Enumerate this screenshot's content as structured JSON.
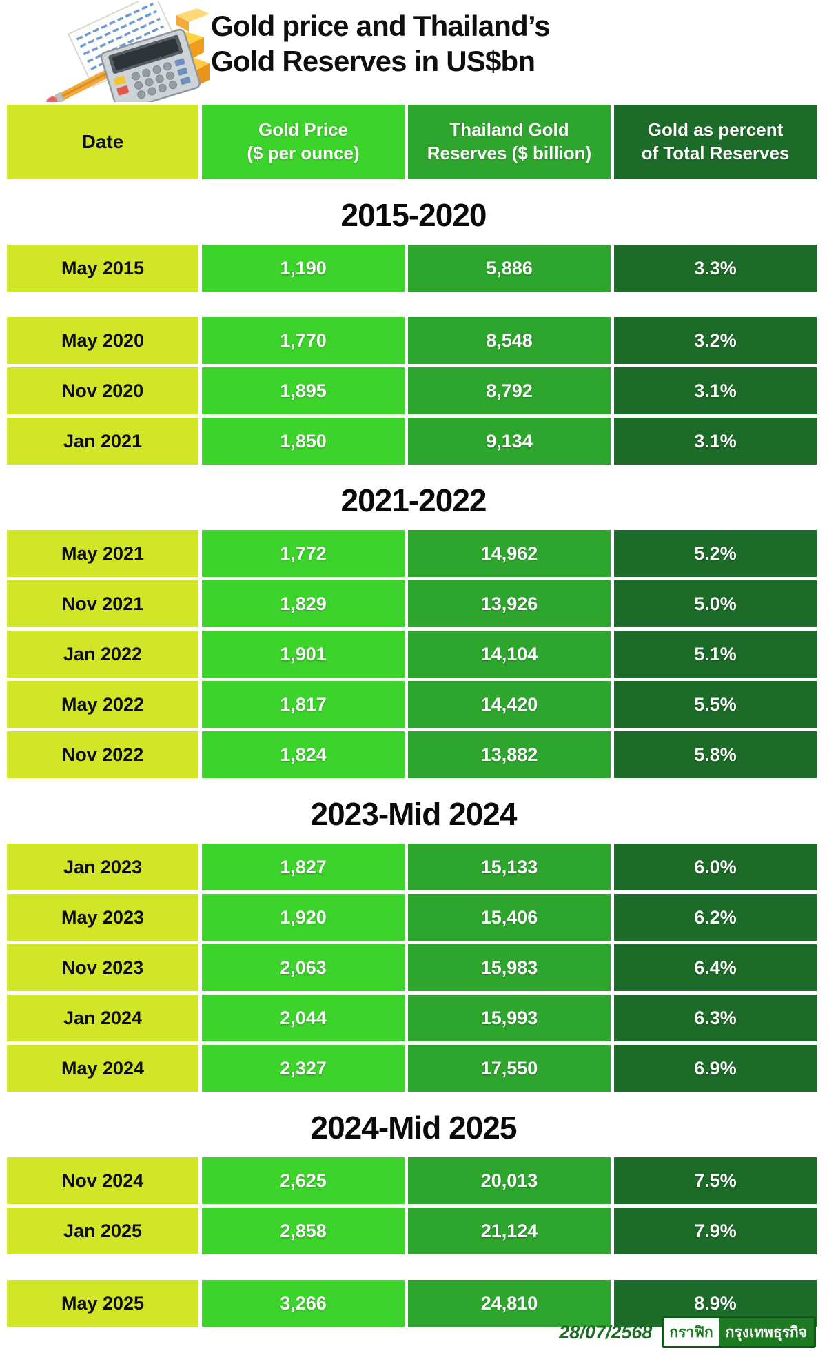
{
  "page": {
    "title_line1": "Gold price and Thailand’s",
    "title_line2": "Gold Reserves in US$bn"
  },
  "table": {
    "columns": [
      {
        "line1": "Date",
        "line2": ""
      },
      {
        "line1": "Gold Price",
        "line2": "($ per ounce)"
      },
      {
        "line1": "Thailand Gold",
        "line2": "Reserves ($ billion)"
      },
      {
        "line1": "Gold as percent",
        "line2": "of Total Reserves"
      }
    ]
  },
  "sections": [
    {
      "title": "2015-2020",
      "rows": [
        {
          "date": "May 2015",
          "price": "1,190",
          "reserves": "5,886",
          "pct": "3.3%"
        },
        {
          "date": "May 2020",
          "price": "1,770",
          "reserves": "8,548",
          "pct": "3.2%",
          "gap_above": true
        },
        {
          "date": "Nov 2020",
          "price": "1,895",
          "reserves": "8,792",
          "pct": "3.1%"
        },
        {
          "date": "Jan 2021",
          "price": "1,850",
          "reserves": "9,134",
          "pct": "3.1%"
        }
      ]
    },
    {
      "title": "2021-2022",
      "rows": [
        {
          "date": "May 2021",
          "price": "1,772",
          "reserves": "14,962",
          "pct": "5.2%"
        },
        {
          "date": "Nov 2021",
          "price": "1,829",
          "reserves": "13,926",
          "pct": "5.0%"
        },
        {
          "date": "Jan 2022",
          "price": "1,901",
          "reserves": "14,104",
          "pct": "5.1%"
        },
        {
          "date": "May 2022",
          "price": "1,817",
          "reserves": "14,420",
          "pct": "5.5%"
        },
        {
          "date": "Nov 2022",
          "price": "1,824",
          "reserves": "13,882",
          "pct": "5.8%"
        }
      ]
    },
    {
      "title": "2023-Mid 2024",
      "rows": [
        {
          "date": "Jan 2023",
          "price": "1,827",
          "reserves": "15,133",
          "pct": "6.0%"
        },
        {
          "date": "May 2023",
          "price": "1,920",
          "reserves": "15,406",
          "pct": "6.2%"
        },
        {
          "date": "Nov 2023",
          "price": "2,063",
          "reserves": "15,983",
          "pct": "6.4%"
        },
        {
          "date": "Jan 2024",
          "price": "2,044",
          "reserves": "15,993",
          "pct": "6.3%"
        },
        {
          "date": "May 2024",
          "price": "2,327",
          "reserves": "17,550",
          "pct": "6.9%"
        }
      ]
    },
    {
      "title": "2024-Mid 2025",
      "rows": [
        {
          "date": "Nov 2024",
          "price": "2,625",
          "reserves": "20,013",
          "pct": "7.5%"
        },
        {
          "date": "Jan 2025",
          "price": "2,858",
          "reserves": "21,124",
          "pct": "7.9%"
        },
        {
          "date": "May 2025",
          "price": "3,266",
          "reserves": "24,810",
          "pct": "8.9%",
          "gap_above": true
        }
      ]
    }
  ],
  "footer": {
    "date": "28/07/2568",
    "logo_left": "กราฟิก",
    "logo_right": "กรุงเทพธุรกิจ"
  },
  "colors": {
    "date_column": "#d2e628",
    "gold_price_column": "#3cd32b",
    "reserves_column": "#2ea62e",
    "percent_column": "#1d6b28",
    "header_text": "#ffffff",
    "date_text": "#0e0e0e",
    "footer_green": "#1b6e21",
    "logo_green": "#1e7a22"
  },
  "chart_data": {
    "type": "table",
    "title": "Gold price and Thailand's Gold Reserves in US$bn",
    "columns": [
      "Date",
      "Gold Price ($ per ounce)",
      "Thailand Gold Reserves ($ billion)",
      "Gold as percent of Total Reserves"
    ],
    "groups": [
      {
        "label": "2015-2020",
        "rows": [
          [
            "May 2015",
            1190,
            5886,
            3.3
          ],
          [
            "May 2020",
            1770,
            8548,
            3.2
          ],
          [
            "Nov 2020",
            1895,
            8792,
            3.1
          ],
          [
            "Jan 2021",
            1850,
            9134,
            3.1
          ]
        ]
      },
      {
        "label": "2021-2022",
        "rows": [
          [
            "May 2021",
            1772,
            14962,
            5.2
          ],
          [
            "Nov 2021",
            1829,
            13926,
            5.0
          ],
          [
            "Jan 2022",
            1901,
            14104,
            5.1
          ],
          [
            "May 2022",
            1817,
            14420,
            5.5
          ],
          [
            "Nov 2022",
            1824,
            13882,
            5.8
          ]
        ]
      },
      {
        "label": "2023-Mid 2024",
        "rows": [
          [
            "Jan 2023",
            1827,
            15133,
            6.0
          ],
          [
            "May 2023",
            1920,
            15406,
            6.2
          ],
          [
            "Nov 2023",
            2063,
            15983,
            6.4
          ],
          [
            "Jan 2024",
            2044,
            15993,
            6.3
          ],
          [
            "May 2024",
            2327,
            17550,
            6.9
          ]
        ]
      },
      {
        "label": "2024-Mid 2025",
        "rows": [
          [
            "Nov 2024",
            2625,
            20013,
            7.5
          ],
          [
            "Jan 2025",
            2858,
            21124,
            7.9
          ],
          [
            "May 2025",
            3266,
            24810,
            8.9
          ]
        ]
      }
    ],
    "units": {
      "percent_suffix": "%"
    }
  }
}
